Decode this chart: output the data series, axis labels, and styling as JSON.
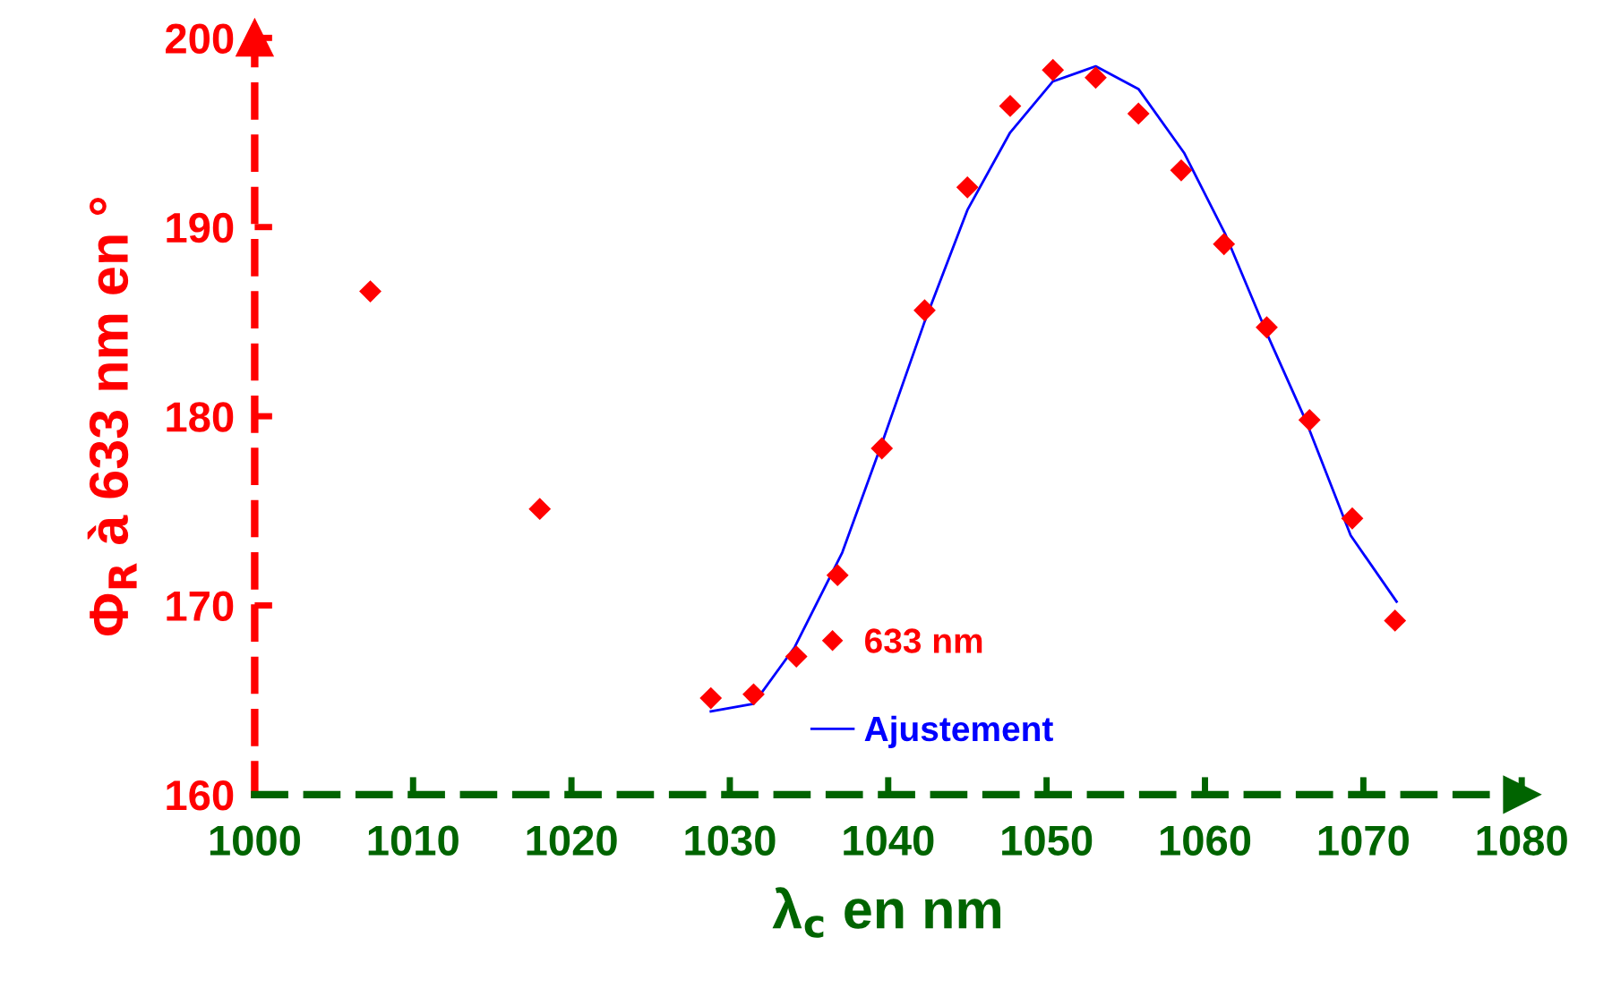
{
  "chart_data": {
    "type": "scatter",
    "xlabel": "λ$_{c}$ en nm",
    "ylabel": "Φ$_{R}$ à 633 nm en °",
    "xlim": [
      1000,
      1080
    ],
    "xticks": [
      1000,
      1010,
      1020,
      1030,
      1040,
      1050,
      1060,
      1070,
      1080
    ],
    "ylim": [
      160,
      200
    ],
    "yticks": [
      160,
      170,
      180,
      190,
      200
    ],
    "grid": false,
    "legend": "bottom",
    "series": [
      {
        "name": "633 nm",
        "color": "#ff0000",
        "marker": "diamond",
        "x": [
          1007.3,
          1018.0,
          1028.8,
          1031.5,
          1034.2,
          1036.8,
          1039.6,
          1042.3,
          1045.0,
          1047.7,
          1050.4,
          1053.1,
          1055.8,
          1058.5,
          1061.2,
          1063.9,
          1066.6,
          1069.3,
          1072.0
        ],
        "values": [
          186.6,
          175.1,
          165.1,
          165.3,
          167.3,
          171.6,
          178.3,
          185.6,
          192.1,
          196.4,
          198.3,
          197.9,
          196.0,
          193.0,
          189.1,
          184.7,
          179.8,
          174.6,
          169.2
        ]
      },
      {
        "name": "Ajustement",
        "type": "line",
        "color": "#0000ff",
        "marker": "none",
        "line_style": "solid",
        "x": [
          1028.8,
          1031.5,
          1034.1,
          1037.1,
          1039.7,
          1042.3,
          1045.0,
          1047.7,
          1050.4,
          1052.1,
          1053.1,
          1055.8,
          1058.7,
          1061.3,
          1064.0,
          1066.4,
          1069.2,
          1072.1
        ],
        "values": [
          164.4,
          164.8,
          167.8,
          172.8,
          178.8,
          185.0,
          190.9,
          195.0,
          197.7,
          198.2,
          198.5,
          197.3,
          193.9,
          189.6,
          184.2,
          179.7,
          173.7,
          170.2
        ]
      }
    ]
  }
}
